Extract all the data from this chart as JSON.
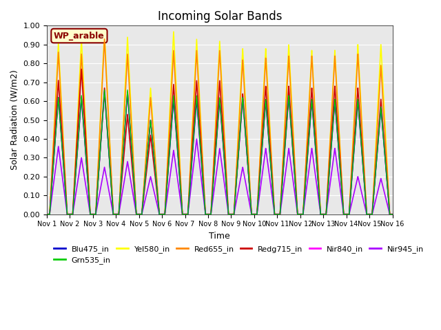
{
  "title": "Incoming Solar Bands",
  "xlabel": "Time",
  "ylabel": "Solar Radiation (W/m2)",
  "ylim": [
    0.0,
    1.0
  ],
  "yticks": [
    0.0,
    0.1,
    0.2,
    0.3,
    0.4,
    0.5,
    0.6,
    0.7,
    0.8,
    0.9,
    1.0
  ],
  "xtick_labels": [
    "Nov 1",
    "Nov 2",
    "Nov 3",
    "Nov 4",
    "Nov 5",
    "Nov 6",
    "Nov 7",
    "Nov 8",
    "Nov 9",
    "Nov 10",
    "Nov 11",
    "Nov 12",
    "Nov 13",
    "Nov 14",
    "Nov 15",
    "Nov 16"
  ],
  "site_label": "WP_arable",
  "bg_color": "#e8e8e8",
  "series": {
    "Blu475_in": {
      "color": "#0000cc",
      "lw": 1.0
    },
    "Grn535_in": {
      "color": "#00cc00",
      "lw": 1.0
    },
    "Yel580_in": {
      "color": "#ffff00",
      "lw": 1.2
    },
    "Red655_in": {
      "color": "#ff8800",
      "lw": 1.2
    },
    "Redg715_in": {
      "color": "#cc0000",
      "lw": 1.2
    },
    "Nir840_in": {
      "color": "#ff00ff",
      "lw": 1.2
    },
    "Nir945_in": {
      "color": "#aa00ff",
      "lw": 1.2
    }
  },
  "peaks_per_day": [
    {
      "day": 1,
      "yel": 0.91,
      "red": 0.86,
      "redg": 0.71,
      "nir840": 0.62,
      "nir945": 0.36,
      "blu": 0.62,
      "grn": 0.62
    },
    {
      "day": 2,
      "yel": 0.93,
      "red": 0.85,
      "redg": 0.77,
      "nir840": 0.62,
      "nir945": 0.3,
      "blu": 0.62,
      "grn": 0.63
    },
    {
      "day": 3,
      "yel": 0.97,
      "red": 0.93,
      "redg": 0.67,
      "nir840": 0.65,
      "nir945": 0.25,
      "blu": 0.65,
      "grn": 0.66
    },
    {
      "day": 4,
      "yel": 0.94,
      "red": 0.85,
      "redg": 0.53,
      "nir840": 0.65,
      "nir945": 0.28,
      "blu": 0.65,
      "grn": 0.66
    },
    {
      "day": 5,
      "yel": 0.67,
      "red": 0.62,
      "redg": 0.42,
      "nir840": 0.5,
      "nir945": 0.2,
      "blu": 0.5,
      "grn": 0.5
    },
    {
      "day": 6,
      "yel": 0.97,
      "red": 0.87,
      "redg": 0.69,
      "nir840": 0.62,
      "nir945": 0.34,
      "blu": 0.61,
      "grn": 0.63
    },
    {
      "day": 7,
      "yel": 0.93,
      "red": 0.87,
      "redg": 0.71,
      "nir840": 0.61,
      "nir945": 0.4,
      "blu": 0.61,
      "grn": 0.63
    },
    {
      "day": 8,
      "yel": 0.92,
      "red": 0.87,
      "redg": 0.71,
      "nir840": 0.61,
      "nir945": 0.35,
      "blu": 0.61,
      "grn": 0.62
    },
    {
      "day": 9,
      "yel": 0.88,
      "red": 0.82,
      "redg": 0.64,
      "nir840": 0.61,
      "nir945": 0.25,
      "blu": 0.62,
      "grn": 0.62
    },
    {
      "day": 10,
      "yel": 0.88,
      "red": 0.83,
      "redg": 0.68,
      "nir840": 0.6,
      "nir945": 0.35,
      "blu": 0.6,
      "grn": 0.61
    },
    {
      "day": 11,
      "yel": 0.9,
      "red": 0.84,
      "redg": 0.68,
      "nir840": 0.62,
      "nir945": 0.35,
      "blu": 0.63,
      "grn": 0.63
    },
    {
      "day": 12,
      "yel": 0.87,
      "red": 0.84,
      "redg": 0.67,
      "nir840": 0.6,
      "nir945": 0.35,
      "blu": 0.6,
      "grn": 0.61
    },
    {
      "day": 13,
      "yel": 0.87,
      "red": 0.84,
      "redg": 0.68,
      "nir840": 0.6,
      "nir945": 0.35,
      "blu": 0.6,
      "grn": 0.61
    },
    {
      "day": 14,
      "yel": 0.9,
      "red": 0.85,
      "redg": 0.67,
      "nir840": 0.6,
      "nir945": 0.2,
      "blu": 0.6,
      "grn": 0.61
    },
    {
      "day": 15,
      "yel": 0.9,
      "red": 0.79,
      "redg": 0.61,
      "nir840": 0.57,
      "nir945": 0.19,
      "blu": 0.56,
      "grn": 0.57
    }
  ]
}
